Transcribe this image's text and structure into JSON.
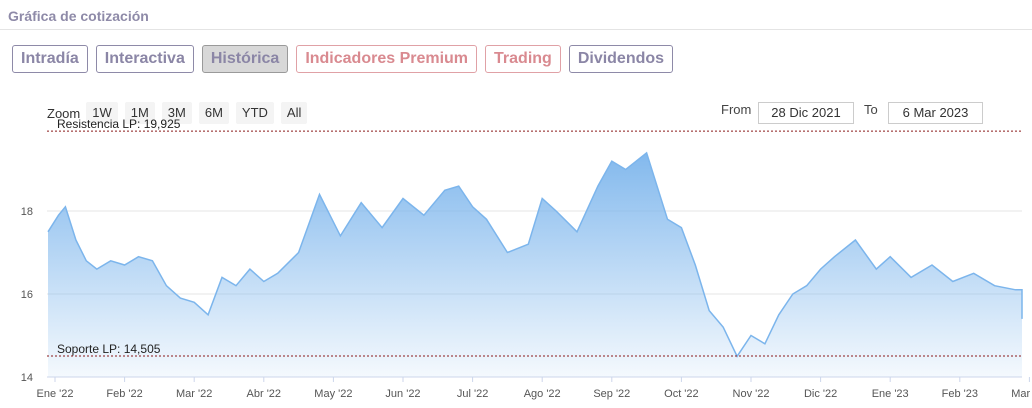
{
  "header": {
    "title": "Gráfica de cotización"
  },
  "tabs": [
    {
      "label": "Intradía",
      "style": "normal"
    },
    {
      "label": "Interactiva",
      "style": "normal"
    },
    {
      "label": "Histórica",
      "style": "active"
    },
    {
      "label": "Indicadores Premium",
      "style": "premium"
    },
    {
      "label": "Trading",
      "style": "premium"
    },
    {
      "label": "Dividendos",
      "style": "normal"
    }
  ],
  "zoom": {
    "label": "Zoom",
    "buttons": [
      "1W",
      "1M",
      "3M",
      "6M",
      "YTD",
      "All"
    ]
  },
  "range": {
    "from_label": "From",
    "from_value": "28 Dic 2021",
    "to_label": "To",
    "to_value": "6 Mar 2023"
  },
  "colors": {
    "line": "#7cb5ec",
    "fill_top": "#7cb5ec",
    "level_line": "#8b1a1a",
    "grid": "#e6e6e6",
    "tab_text": "#8b86a6",
    "premium": "#d98a90"
  },
  "chart_data": {
    "type": "area",
    "ylim": [
      14,
      20
    ],
    "y_ticks": [
      14,
      16,
      18
    ],
    "x_labels": [
      "Ene '22",
      "Feb '22",
      "Mar '22",
      "Abr '22",
      "May '22",
      "Jun '22",
      "Jul '22",
      "Ago '22",
      "Sep '22",
      "Oct '22",
      "Nov '22",
      "Dic '22",
      "Ene '23",
      "Feb '23",
      "Mar '23"
    ],
    "annotations": [
      {
        "label": "Resistencia LP: 19,925",
        "value": 19.925
      },
      {
        "label": "Soporte LP: 14,505",
        "value": 14.505
      }
    ],
    "grid": true,
    "legend": "none",
    "x": [
      -0.1,
      0.05,
      0.15,
      0.3,
      0.45,
      0.6,
      0.8,
      1.0,
      1.2,
      1.4,
      1.6,
      1.8,
      2.0,
      2.2,
      2.4,
      2.6,
      2.8,
      3.0,
      3.2,
      3.5,
      3.8,
      4.1,
      4.4,
      4.7,
      5.0,
      5.3,
      5.6,
      5.8,
      6.0,
      6.2,
      6.5,
      6.8,
      7.0,
      7.2,
      7.5,
      7.8,
      8.0,
      8.2,
      8.5,
      8.8,
      9.0,
      9.2,
      9.4,
      9.6,
      9.8,
      10.0,
      10.2,
      10.4,
      10.6,
      10.8,
      11.0,
      11.2,
      11.5,
      11.8,
      12.0,
      12.3,
      12.6,
      12.9,
      13.2,
      13.5,
      13.8,
      14.0,
      14.2,
      14.3
    ],
    "values": [
      17.5,
      17.9,
      18.1,
      17.3,
      16.8,
      16.6,
      16.8,
      16.7,
      16.9,
      16.8,
      16.2,
      15.9,
      15.8,
      15.5,
      16.4,
      16.2,
      16.6,
      16.3,
      16.5,
      17.0,
      18.4,
      17.4,
      18.2,
      17.6,
      18.3,
      17.9,
      18.5,
      18.6,
      18.1,
      17.8,
      17.0,
      17.2,
      18.3,
      18.0,
      17.5,
      18.6,
      19.2,
      19.0,
      19.4,
      17.8,
      17.6,
      16.7,
      15.6,
      15.2,
      14.5,
      15.0,
      14.8,
      15.5,
      16.0,
      16.2,
      16.6,
      16.9,
      17.3,
      16.6,
      16.9,
      16.4,
      16.7,
      16.3,
      16.5,
      16.2,
      16.1,
      16.1,
      15.4,
      15.5
    ]
  }
}
